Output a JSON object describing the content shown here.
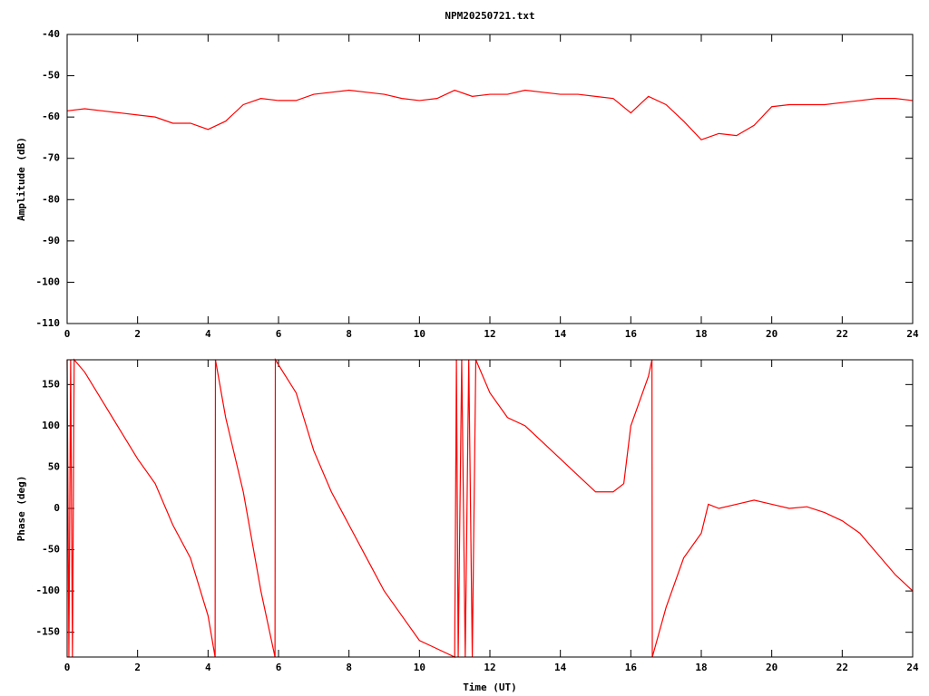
{
  "chart_data": [
    {
      "type": "line",
      "title": "NPM20250721.txt",
      "y_label": "Amplitude (dB)",
      "xlim": [
        0,
        24
      ],
      "xticks": [
        0,
        2,
        4,
        6,
        8,
        10,
        12,
        14,
        16,
        18,
        20,
        22,
        24
      ],
      "ylim": [
        -110,
        -40
      ],
      "yticks": [
        -40,
        -50,
        -60,
        -70,
        -80,
        -90,
        -100,
        -110
      ],
      "color": "#ff0000",
      "x": [
        0,
        0.5,
        1,
        1.5,
        2,
        2.5,
        3,
        3.5,
        4,
        4.5,
        5,
        5.5,
        6,
        6.5,
        7,
        7.5,
        8,
        8.5,
        9,
        9.5,
        10,
        10.5,
        11,
        11.5,
        12,
        12.5,
        13,
        13.5,
        14,
        14.5,
        15,
        15.5,
        16,
        16.5,
        17,
        17.5,
        18,
        18.5,
        19,
        19.5,
        20,
        20.5,
        21,
        21.5,
        22,
        22.5,
        23,
        23.5,
        24
      ],
      "values": [
        -58.5,
        -58,
        -58.5,
        -59,
        -59.5,
        -60,
        -61.5,
        -61.5,
        -63,
        -61,
        -57,
        -55.5,
        -56,
        -56,
        -54.5,
        -54,
        -53.5,
        -54,
        -54.5,
        -55.5,
        -56,
        -55.5,
        -53.5,
        -55,
        -54.5,
        -54.5,
        -53.5,
        -54,
        -54.5,
        -54.5,
        -55,
        -55.5,
        -59,
        -55,
        -57,
        -61,
        -65.5,
        -64,
        -64.5,
        -62,
        -57.5,
        -57,
        -57,
        -57,
        -56.5,
        -56,
        -55.5,
        -55.5,
        -56
      ]
    },
    {
      "type": "line",
      "x_label": "Time (UT)",
      "y_label": "Phase (deg)",
      "xlim": [
        0,
        24
      ],
      "xticks": [
        0,
        2,
        4,
        6,
        8,
        10,
        12,
        14,
        16,
        18,
        20,
        22,
        24
      ],
      "ylim": [
        -180,
        180
      ],
      "yticks": [
        -150,
        -100,
        -50,
        0,
        50,
        100,
        150
      ],
      "color": "#ff0000",
      "x": [
        0,
        0.05,
        0.1,
        0.15,
        0.2,
        0.5,
        1,
        1.5,
        2,
        2.5,
        3,
        3.5,
        4,
        4.2,
        4.21,
        4.5,
        5,
        5.5,
        5.9,
        5.91,
        6.5,
        7,
        7.5,
        8,
        8.5,
        9,
        9.5,
        10,
        10.5,
        11,
        11.05,
        11.1,
        11.2,
        11.3,
        11.4,
        11.5,
        11.6,
        12,
        12.5,
        13,
        13.5,
        14,
        14.5,
        15,
        15.5,
        15.8,
        16,
        16.5,
        16.6,
        16.61,
        17,
        17.5,
        18,
        18.2,
        18.5,
        19,
        19.5,
        20,
        20.5,
        21,
        21.5,
        22,
        22.5,
        23,
        23.5,
        24
      ],
      "values": [
        180,
        -180,
        180,
        -180,
        180,
        165,
        130,
        95,
        60,
        30,
        -20,
        -60,
        -130,
        -180,
        180,
        110,
        20,
        -100,
        -180,
        180,
        140,
        70,
        20,
        -20,
        -60,
        -100,
        -130,
        -160,
        -170,
        -180,
        180,
        -180,
        180,
        -180,
        180,
        -180,
        180,
        140,
        110,
        100,
        80,
        60,
        40,
        20,
        20,
        30,
        100,
        160,
        180,
        -180,
        -120,
        -60,
        -30,
        5,
        0,
        5,
        10,
        5,
        0,
        2,
        -5,
        -15,
        -30,
        -55,
        -80,
        -100
      ]
    }
  ]
}
